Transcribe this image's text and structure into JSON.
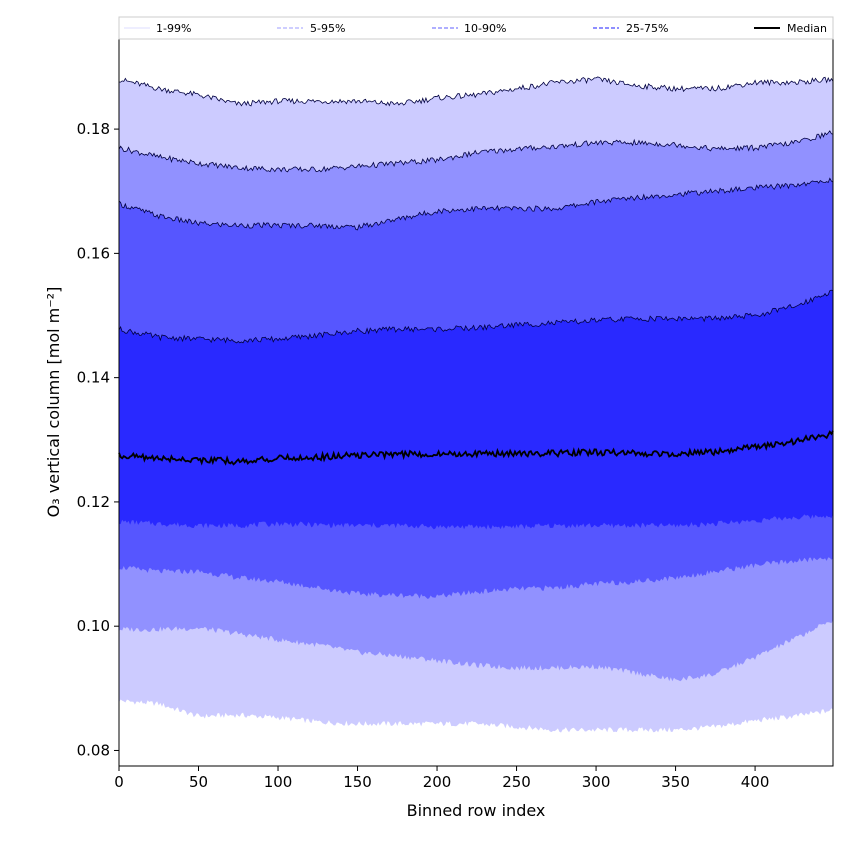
{
  "chart_data": {
    "type": "area",
    "xlabel": "Binned row index",
    "ylabel": "O₃ vertical column [mol m⁻²]",
    "xlim": [
      0,
      449
    ],
    "ylim": [
      0.0775,
      0.1945
    ],
    "xticks": [
      0,
      50,
      100,
      150,
      200,
      250,
      300,
      350,
      400
    ],
    "yticks": [
      0.08,
      0.1,
      0.12,
      0.14,
      0.16,
      0.18
    ],
    "ytick_labels": [
      "0.08",
      "0.10",
      "0.12",
      "0.14",
      "0.16",
      "0.18"
    ],
    "x": [
      0,
      25,
      50,
      75,
      100,
      125,
      150,
      175,
      200,
      225,
      250,
      275,
      300,
      325,
      350,
      375,
      400,
      425,
      449
    ],
    "bands": [
      {
        "name": "1-99%",
        "color": "#cccbff",
        "lower": [
          0.088,
          0.0875,
          0.0855,
          0.0857,
          0.0853,
          0.0846,
          0.0843,
          0.0843,
          0.0843,
          0.0843,
          0.0838,
          0.0833,
          0.0833,
          0.0833,
          0.0833,
          0.0838,
          0.0848,
          0.0855,
          0.0865
        ],
        "upper": [
          0.188,
          0.1865,
          0.1855,
          0.184,
          0.1845,
          0.1845,
          0.1845,
          0.184,
          0.185,
          0.1855,
          0.1865,
          0.1875,
          0.188,
          0.187,
          0.1865,
          0.1865,
          0.1875,
          0.1875,
          0.188
        ]
      },
      {
        "name": "5-95%",
        "color": "#9191ff",
        "lower": [
          0.0995,
          0.0995,
          0.0997,
          0.0988,
          0.0978,
          0.097,
          0.0958,
          0.0952,
          0.0945,
          0.0937,
          0.0933,
          0.0933,
          0.0935,
          0.0925,
          0.0913,
          0.0923,
          0.095,
          0.098,
          0.101
        ],
        "upper": [
          0.177,
          0.1755,
          0.1745,
          0.1738,
          0.1735,
          0.1735,
          0.174,
          0.1745,
          0.175,
          0.1762,
          0.1768,
          0.1772,
          0.1778,
          0.1778,
          0.1775,
          0.1768,
          0.177,
          0.1778,
          0.1795
        ]
      },
      {
        "name": "10-90%",
        "color": "#5656ff",
        "lower": [
          0.1095,
          0.1088,
          0.1088,
          0.1078,
          0.1072,
          0.1062,
          0.1052,
          0.105,
          0.1048,
          0.1055,
          0.106,
          0.1062,
          0.1068,
          0.1072,
          0.1078,
          0.1088,
          0.1098,
          0.1105,
          0.111
        ],
        "upper": [
          0.168,
          0.166,
          0.1648,
          0.1645,
          0.1645,
          0.1645,
          0.1642,
          0.1655,
          0.1668,
          0.1672,
          0.1672,
          0.1672,
          0.1683,
          0.169,
          0.1695,
          0.17,
          0.1705,
          0.171,
          0.1718
        ]
      },
      {
        "name": "25-75%",
        "color": "#2929ff",
        "lower": [
          0.1168,
          0.1165,
          0.1162,
          0.1162,
          0.1165,
          0.1163,
          0.1162,
          0.1162,
          0.116,
          0.116,
          0.116,
          0.1162,
          0.1162,
          0.1162,
          0.1162,
          0.1165,
          0.117,
          0.1175,
          0.1178
        ],
        "upper": [
          0.1478,
          0.1465,
          0.1462,
          0.146,
          0.1462,
          0.1468,
          0.1475,
          0.1478,
          0.1478,
          0.148,
          0.1485,
          0.1488,
          0.1492,
          0.1495,
          0.1495,
          0.1495,
          0.15,
          0.1515,
          0.154
        ]
      }
    ],
    "median": {
      "name": "Median",
      "color": "#000000",
      "values": [
        0.1275,
        0.127,
        0.1268,
        0.1265,
        0.127,
        0.1272,
        0.1275,
        0.1277,
        0.1277,
        0.1278,
        0.1278,
        0.1278,
        0.128,
        0.1278,
        0.1278,
        0.128,
        0.1288,
        0.1297,
        0.131
      ]
    },
    "legend": {
      "placement": "top",
      "entries": [
        {
          "label": "1-99%",
          "color": "#e4e4ff",
          "style": "solid"
        },
        {
          "label": "5-95%",
          "color": "#b0b0ff",
          "style": "dashed"
        },
        {
          "label": "10-90%",
          "color": "#7f7fff",
          "style": "dashed"
        },
        {
          "label": "25-75%",
          "color": "#4b4bff",
          "style": "dashed"
        },
        {
          "label": "Median",
          "color": "#000000",
          "style": "solid"
        }
      ]
    }
  }
}
